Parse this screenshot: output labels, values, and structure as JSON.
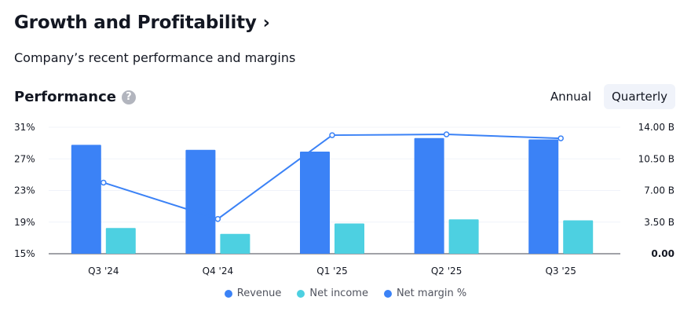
{
  "header": {
    "title": "Growth and Profitability",
    "chevron": "›",
    "subtitle": "Company’s recent performance and margins"
  },
  "section": {
    "title": "Performance",
    "help_symbol": "?"
  },
  "period_toggle": {
    "options": [
      "Annual",
      "Quarterly"
    ],
    "selected": "Quarterly"
  },
  "colors": {
    "revenue": "#3b82f6",
    "net_income": "#4dd0e1",
    "net_margin": "#3b82f6"
  },
  "chart_data": {
    "type": "bar",
    "categories": [
      "Q3 '24",
      "Q4 '24",
      "Q1 '25",
      "Q2 '25",
      "Q3 '25"
    ],
    "series": [
      {
        "name": "Revenue",
        "type": "bar",
        "axis": "right",
        "values": [
          12.05,
          11.5,
          11.3,
          12.8,
          12.65
        ]
      },
      {
        "name": "Net income",
        "type": "bar",
        "axis": "right",
        "values": [
          2.85,
          2.2,
          3.35,
          3.8,
          3.7
        ]
      },
      {
        "name": "Net margin %",
        "type": "line",
        "axis": "left",
        "values": [
          24.0,
          19.4,
          30.0,
          30.1,
          29.6
        ]
      }
    ],
    "left_axis": {
      "ticks": [
        "31%",
        "27%",
        "23%",
        "19%",
        "15%"
      ],
      "range": [
        15,
        31
      ]
    },
    "right_axis": {
      "ticks": [
        "14.00 B",
        "10.50 B",
        "7.00 B",
        "3.50 B",
        "0.00"
      ],
      "range": [
        0,
        14
      ]
    },
    "legend": [
      "Revenue",
      "Net income",
      "Net margin %"
    ],
    "grid": true
  }
}
